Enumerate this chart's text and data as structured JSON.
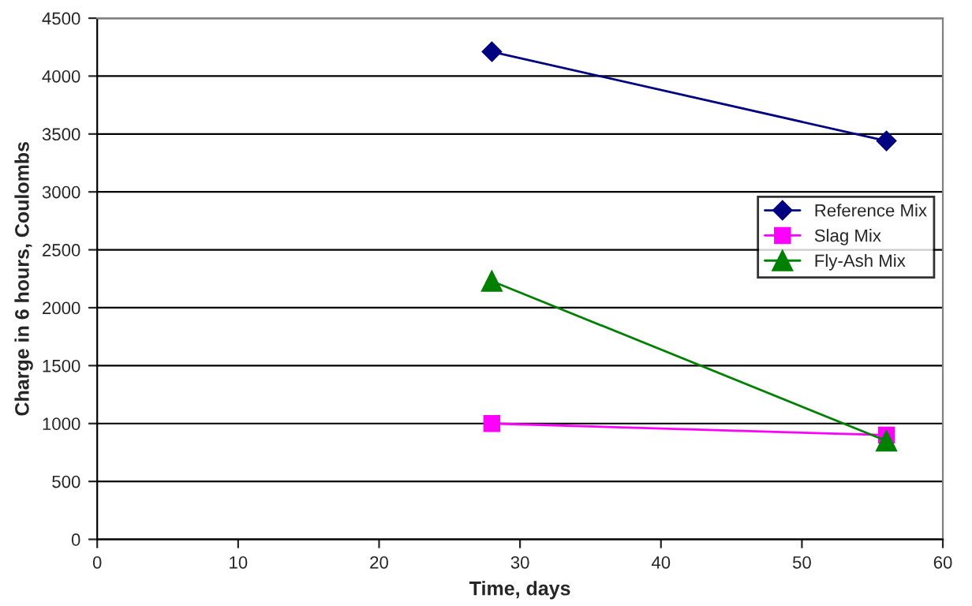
{
  "chart_data": {
    "type": "line",
    "xlabel": "Time, days",
    "ylabel": "Charge in 6 hours, Coulombs",
    "x": [
      28,
      56
    ],
    "series": [
      {
        "name": "Reference Mix",
        "color": "#000080",
        "marker": "diamond",
        "values": [
          4210,
          3440
        ]
      },
      {
        "name": "Slag Mix",
        "color": "#ff00ff",
        "marker": "square",
        "values": [
          1000,
          900
        ]
      },
      {
        "name": "Fly-Ash Mix",
        "color": "#008000",
        "marker": "triangle",
        "values": [
          2230,
          850
        ]
      }
    ],
    "xlim": [
      0,
      60
    ],
    "xticks": [
      0,
      10,
      20,
      30,
      40,
      50,
      60
    ],
    "ylim": [
      0,
      4500
    ],
    "yticks": [
      0,
      500,
      1000,
      1500,
      2000,
      2500,
      3000,
      3500,
      4000,
      4500
    ],
    "grid": "y",
    "legend": "right",
    "line_style": "solid"
  }
}
